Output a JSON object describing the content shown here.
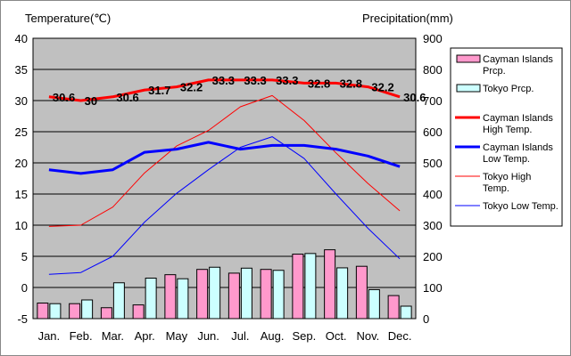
{
  "chart_data": {
    "type": "bar",
    "categories": [
      "Jan.",
      "Feb.",
      "Mar.",
      "Apr.",
      "May",
      "Jun.",
      "Jul.",
      "Aug.",
      "Sep.",
      "Oct.",
      "Nov.",
      "Dec."
    ],
    "left_axis": {
      "title": "Temperature(℃)",
      "range": [
        -5,
        40
      ],
      "ticks": [
        -5,
        0,
        5,
        10,
        15,
        20,
        25,
        30,
        35,
        40
      ]
    },
    "right_axis": {
      "title": "Precipitation(mm)",
      "range": [
        0,
        900
      ],
      "ticks": [
        0,
        100,
        200,
        300,
        400,
        500,
        600,
        700,
        800,
        900
      ]
    },
    "grid": true,
    "legend_position": "right",
    "bar_series": [
      {
        "name": "Cayman Islands Prcp.",
        "color": "#ff99cc",
        "axis": "right",
        "values": [
          50,
          48,
          35,
          44,
          141,
          158,
          146,
          158,
          207,
          221,
          168,
          74
        ]
      },
      {
        "name": "Tokyo Prcp.",
        "color": "#ccffff",
        "axis": "right",
        "values": [
          48,
          60,
          115,
          130,
          128,
          165,
          162,
          155,
          209,
          163,
          93,
          40
        ]
      }
    ],
    "line_series": [
      {
        "name": "Cayman Islands High Temp.",
        "color": "#ff0000",
        "width": 3,
        "axis": "left",
        "values": [
          30.6,
          30.0,
          30.6,
          31.7,
          32.2,
          33.3,
          33.3,
          33.3,
          32.8,
          32.8,
          32.2,
          30.6
        ],
        "labels": [
          "30.6",
          "30",
          "30.6",
          "31.7",
          "32.2",
          "33.3",
          "33.3",
          "33.3",
          "32.8",
          "32.8",
          "32.2",
          "30.6"
        ]
      },
      {
        "name": "Cayman Islands Low Temp.",
        "color": "#0000ff",
        "width": 3,
        "axis": "left",
        "values": [
          18.9,
          18.3,
          18.9,
          21.7,
          22.2,
          23.3,
          22.2,
          22.8,
          22.8,
          22.2,
          21.1,
          19.4
        ]
      },
      {
        "name": "Tokyo High Temp.",
        "color": "#ff0000",
        "width": 1,
        "axis": "left",
        "values": [
          9.8,
          10.0,
          12.9,
          18.4,
          22.7,
          25.2,
          29.0,
          30.8,
          26.8,
          21.6,
          16.7,
          12.3
        ]
      },
      {
        "name": "Tokyo Low Temp.",
        "color": "#0000ff",
        "width": 1,
        "axis": "left",
        "values": [
          2.1,
          2.4,
          5.0,
          10.5,
          15.1,
          18.9,
          22.5,
          24.2,
          20.7,
          15.0,
          9.5,
          4.6
        ]
      }
    ]
  }
}
